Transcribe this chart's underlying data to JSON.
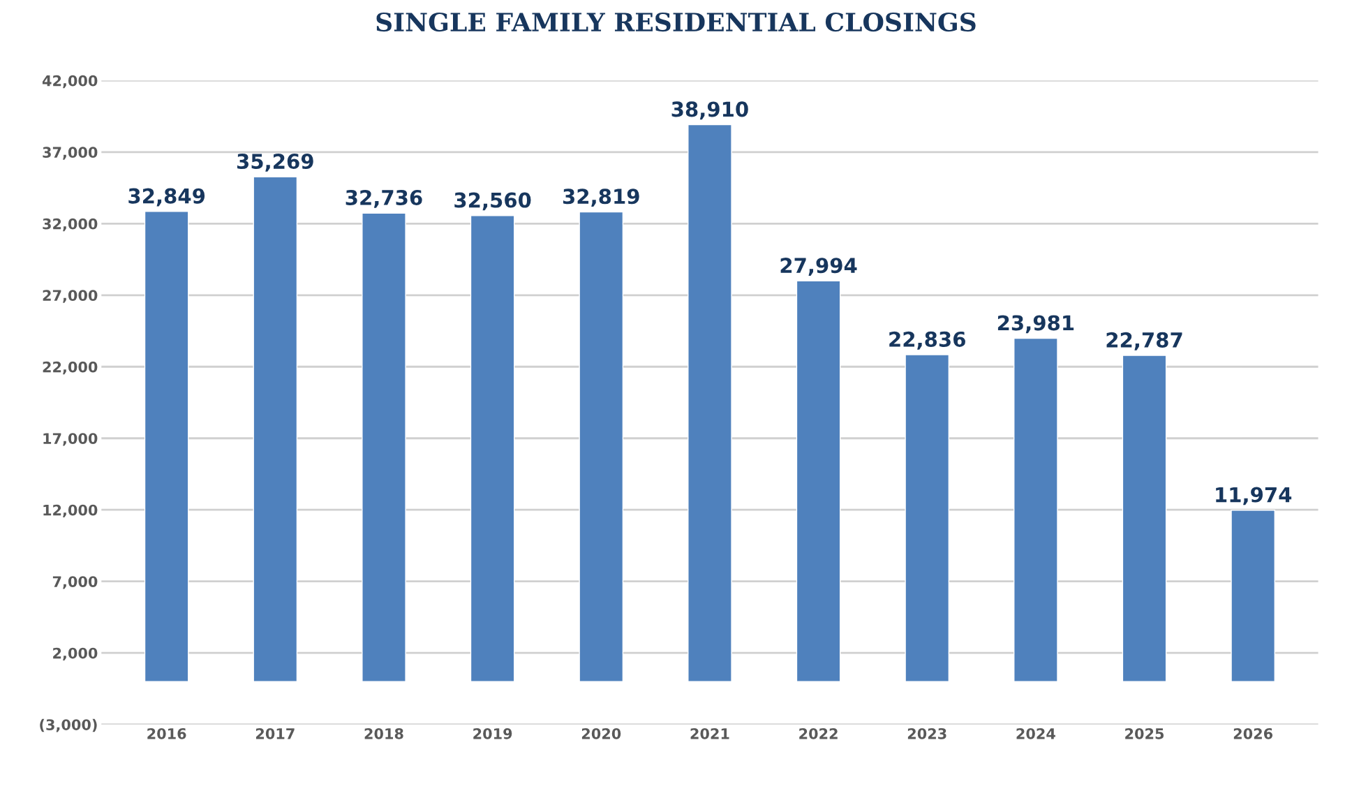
{
  "chart_data": {
    "type": "bar",
    "title": "SINGLE FAMILY RESIDENTIAL CLOSINGS",
    "categories": [
      "2016",
      "2017",
      "2018",
      "2019",
      "2020",
      "2021",
      "2022",
      "2023",
      "2024",
      "2025",
      "2026"
    ],
    "values": [
      32849,
      35269,
      32736,
      32560,
      32819,
      38910,
      27994,
      22836,
      23981,
      22787,
      11974
    ],
    "color": "#4f81bd",
    "value_labels": [
      "32,849",
      "35,269",
      "32,736",
      "32,560",
      "32,819",
      "38,910",
      "27,994",
      "22,836",
      "23,981",
      "22,787",
      "11,974"
    ],
    "ylim": [
      -3000,
      42000
    ],
    "yticks": [
      {
        "value": -3000,
        "label": "(3,000)"
      },
      {
        "value": 2000,
        "label": "2,000"
      },
      {
        "value": 7000,
        "label": "7,000"
      },
      {
        "value": 12000,
        "label": "12,000"
      },
      {
        "value": 17000,
        "label": "17,000"
      },
      {
        "value": 22000,
        "label": "22,000"
      },
      {
        "value": 27000,
        "label": "27,000"
      },
      {
        "value": 32000,
        "label": "32,000"
      },
      {
        "value": 37000,
        "label": "37,000"
      },
      {
        "value": 42000,
        "label": "42,000"
      }
    ],
    "grid": "y"
  }
}
